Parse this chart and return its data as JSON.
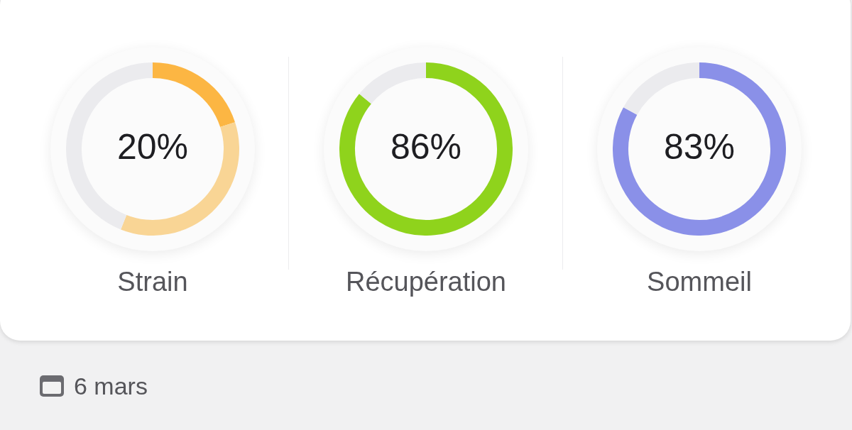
{
  "chart_data": [
    {
      "type": "donut",
      "title": "Strain",
      "categories": [
        null,
        null,
        null
      ],
      "values": [
        20,
        36,
        44
      ],
      "colors": [
        "#fcb643",
        "#f9d595",
        "#ebebee"
      ],
      "annotations": [
        "20%"
      ]
    },
    {
      "type": "donut",
      "title": "Récupération",
      "categories": [
        null,
        null
      ],
      "values": [
        86,
        14
      ],
      "colors": [
        "#8fd31c",
        "#ebebee"
      ],
      "annotations": [
        "86%"
      ]
    },
    {
      "type": "donut",
      "title": "Sommeil",
      "categories": [
        null,
        null
      ],
      "values": [
        83,
        17
      ],
      "colors": [
        "#8a90e8",
        "#ebebee"
      ],
      "annotations": [
        "83%"
      ]
    },
    {
      "type": "other",
      "annotations": [
        "6 mars"
      ]
    }
  ]
}
